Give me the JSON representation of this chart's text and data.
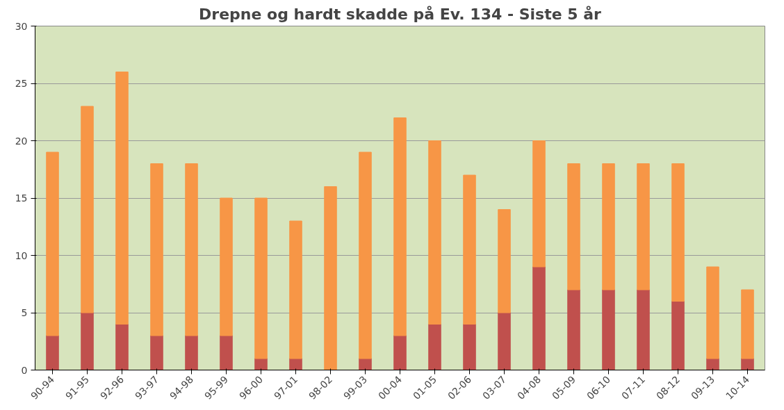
{
  "chart_data": {
    "type": "bar",
    "title": "Drepne og hardt skadde på Ev. 134 - Siste 5 år",
    "categories": [
      "90-94",
      "91-95",
      "92-96",
      "93-97",
      "94-98",
      "95-99",
      "96-00",
      "97-01",
      "98-02",
      "99-03",
      "00-04",
      "01-05",
      "02-06",
      "03-07",
      "04-08",
      "05-09",
      "06-10",
      "07-11",
      "08-12",
      "09-13",
      "10-14"
    ],
    "stacked": true,
    "series": [
      {
        "color": "#c0504d",
        "values": [
          3,
          5,
          4,
          3,
          3,
          3,
          1,
          1,
          0,
          1,
          3,
          4,
          4,
          5,
          9,
          7,
          7,
          7,
          6,
          1,
          1
        ]
      },
      {
        "color": "#f79646",
        "values": [
          16,
          18,
          22,
          15,
          15,
          12,
          14,
          12,
          16,
          18,
          19,
          16,
          13,
          9,
          11,
          11,
          11,
          11,
          12,
          8,
          6
        ]
      }
    ],
    "ylim": [
      0,
      30
    ],
    "yticks": [
      0,
      5,
      10,
      15,
      20,
      25,
      30
    ],
    "grid": "y"
  }
}
